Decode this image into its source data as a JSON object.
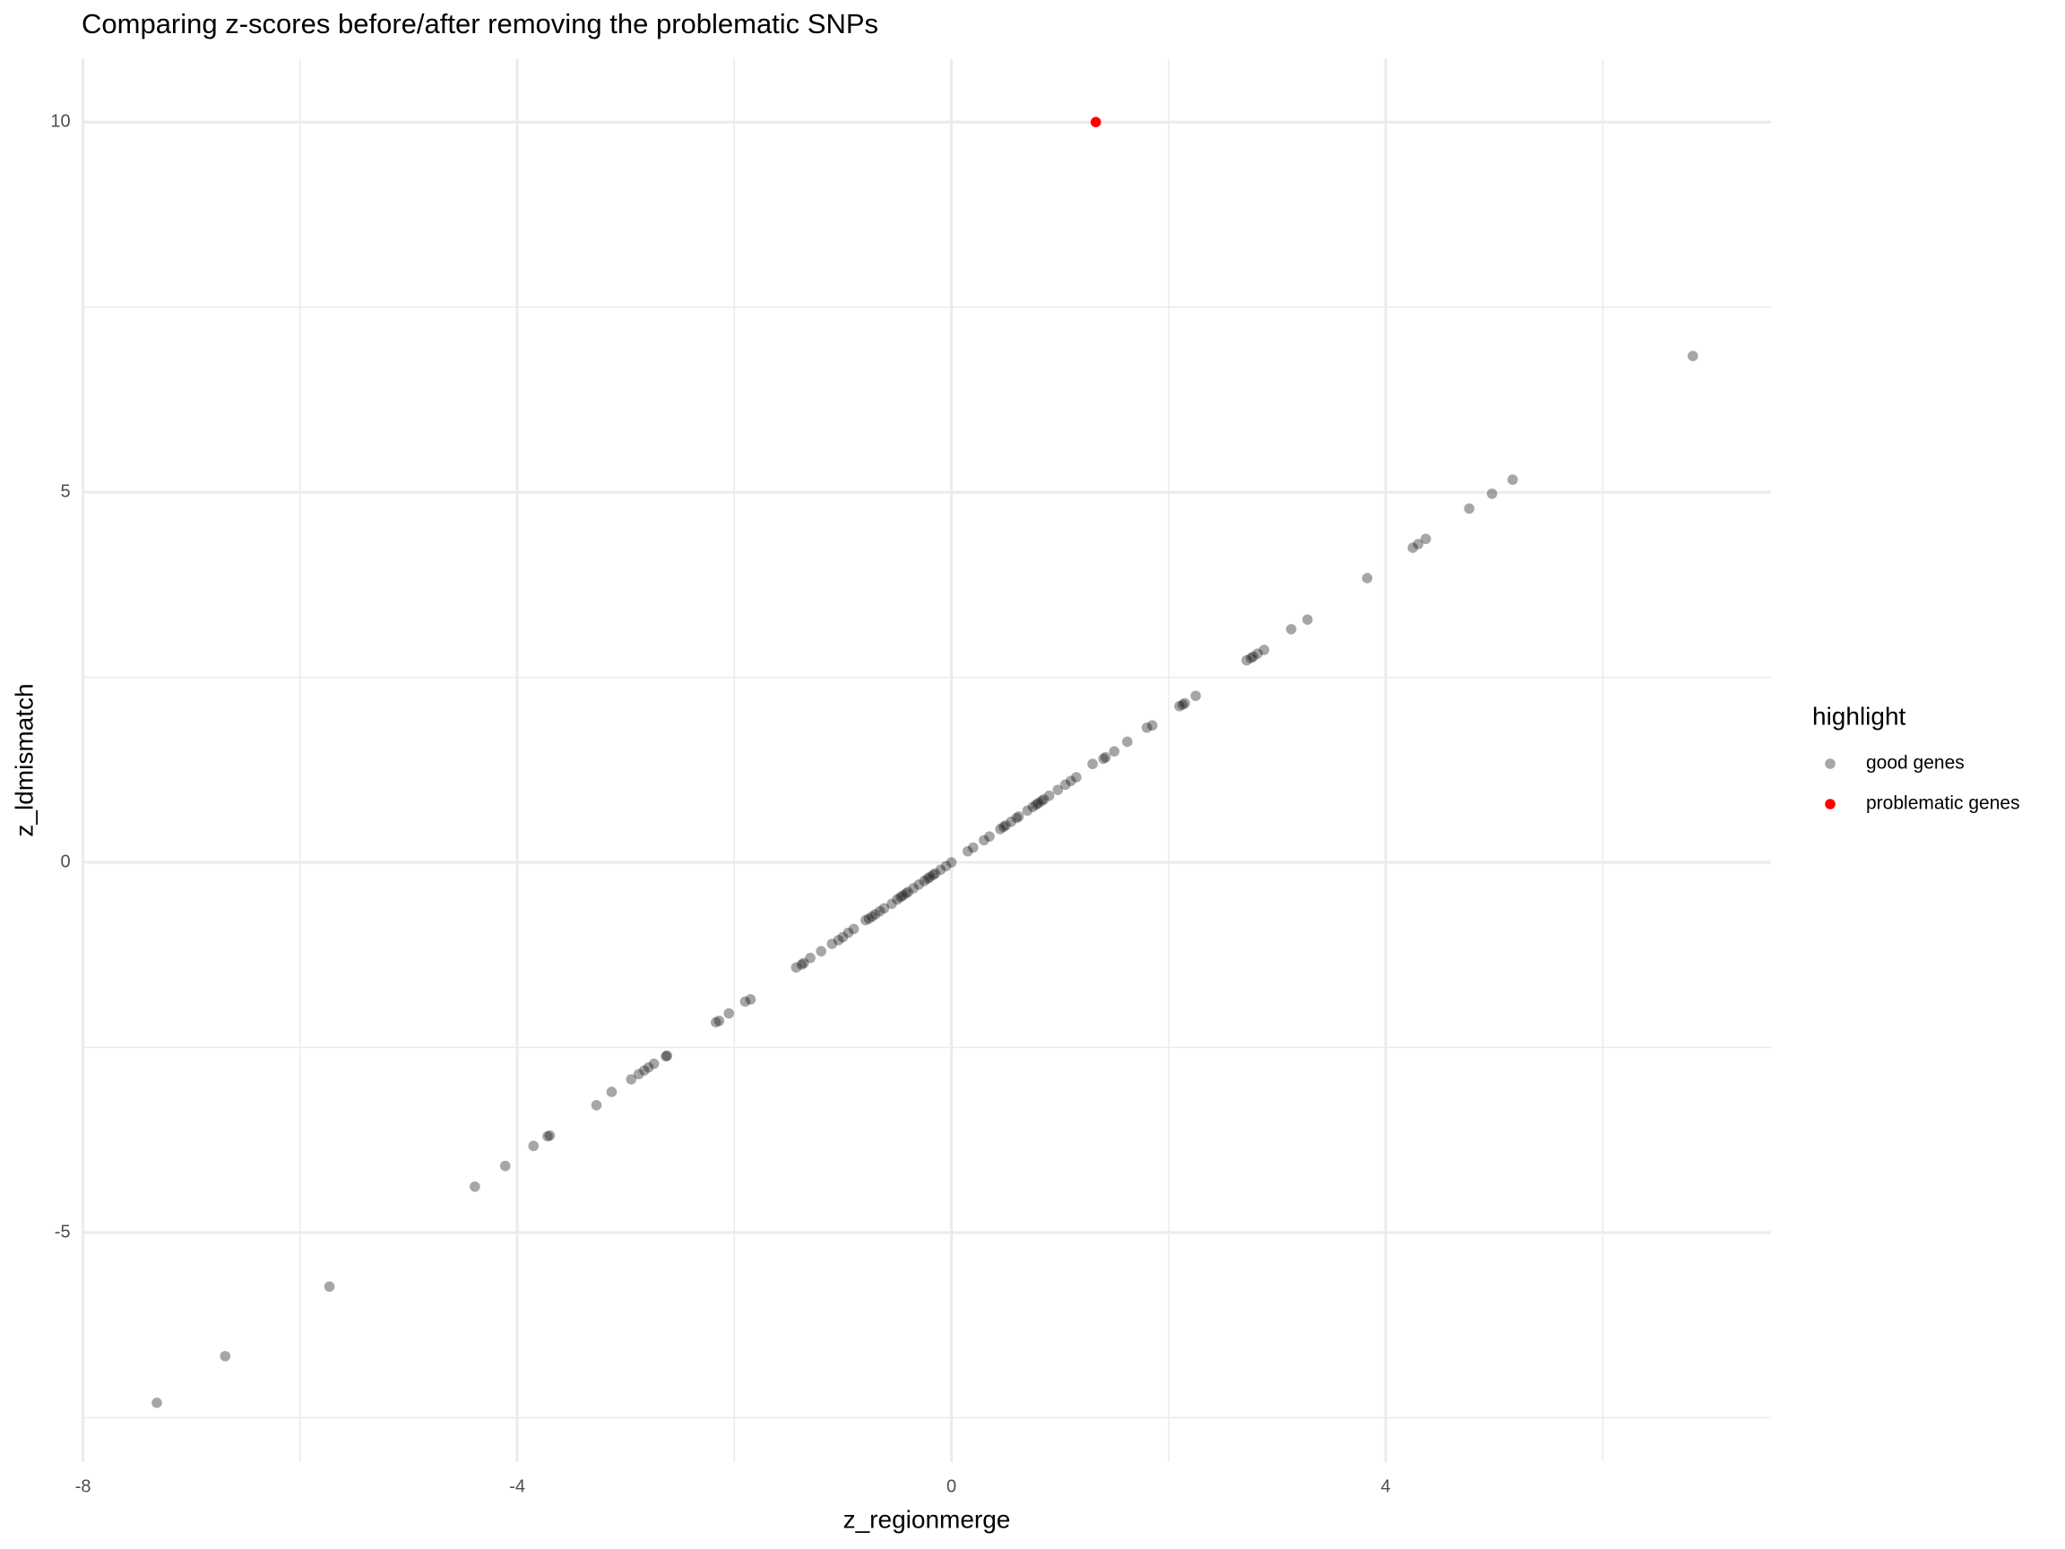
{
  "chart_data": {
    "type": "scatter",
    "title": "Comparing z-scores before/after removing the problematic SNPs",
    "x_label": "z_regionmerge",
    "y_label": "z_ldmismatch",
    "legend_title": "highlight",
    "legend_position": "right",
    "grid": true,
    "xlim": [
      -8,
      7.55
    ],
    "ylim": [
      -8.1,
      10.85
    ],
    "xticks": [
      -8,
      -4,
      0,
      4
    ],
    "yticks": [
      -5,
      0,
      5,
      10
    ],
    "series": [
      {
        "name": "good genes",
        "color": "#000000",
        "opacity": 0.35,
        "x": [
          -7.32,
          -6.69,
          -5.73,
          -4.39,
          -4.11,
          -3.85,
          -3.72,
          -3.7,
          -3.27,
          -3.13,
          -2.95,
          -2.88,
          -2.83,
          -2.79,
          -2.74,
          -2.63,
          -2.62,
          -2.17,
          -2.14,
          -2.05,
          -1.9,
          -1.85,
          -1.43,
          -1.38,
          -1.36,
          -1.3,
          -1.2,
          -1.1,
          -1.04,
          -1.0,
          -0.95,
          -0.9,
          -0.79,
          -0.76,
          -0.73,
          -0.7,
          -0.66,
          -0.62,
          -0.55,
          -0.5,
          -0.47,
          -0.45,
          -0.42,
          -0.4,
          -0.35,
          -0.3,
          -0.25,
          -0.22,
          -0.2,
          -0.17,
          -0.15,
          -0.1,
          -0.05,
          0.0,
          0.15,
          0.2,
          0.3,
          0.35,
          0.45,
          0.48,
          0.5,
          0.55,
          0.6,
          0.62,
          0.7,
          0.75,
          0.78,
          0.8,
          0.83,
          0.85,
          0.9,
          0.98,
          1.05,
          1.1,
          1.15,
          1.3,
          1.4,
          1.42,
          1.5,
          1.62,
          1.8,
          1.85,
          2.1,
          2.13,
          2.15,
          2.25,
          2.72,
          2.76,
          2.78,
          2.82,
          2.88,
          3.13,
          3.28,
          3.83,
          4.25,
          4.3,
          4.37,
          4.77,
          4.98,
          5.17,
          6.83
        ],
        "values": [
          -7.3,
          -6.67,
          -5.73,
          -4.38,
          -4.1,
          -3.83,
          -3.7,
          -3.69,
          -3.28,
          -3.1,
          -2.93,
          -2.86,
          -2.81,
          -2.77,
          -2.72,
          -2.62,
          -2.61,
          -2.16,
          -2.14,
          -2.04,
          -1.88,
          -1.85,
          -1.42,
          -1.38,
          -1.36,
          -1.29,
          -1.2,
          -1.1,
          -1.05,
          -1.01,
          -0.95,
          -0.9,
          -0.78,
          -0.76,
          -0.73,
          -0.7,
          -0.66,
          -0.62,
          -0.56,
          -0.5,
          -0.47,
          -0.45,
          -0.42,
          -0.4,
          -0.35,
          -0.3,
          -0.25,
          -0.22,
          -0.2,
          -0.17,
          -0.15,
          -0.1,
          -0.05,
          0.0,
          0.15,
          0.2,
          0.3,
          0.35,
          0.45,
          0.48,
          0.5,
          0.55,
          0.6,
          0.62,
          0.7,
          0.75,
          0.78,
          0.8,
          0.83,
          0.85,
          0.9,
          0.98,
          1.05,
          1.1,
          1.15,
          1.33,
          1.4,
          1.42,
          1.5,
          1.63,
          1.82,
          1.85,
          2.11,
          2.13,
          2.15,
          2.25,
          2.73,
          2.76,
          2.78,
          2.82,
          2.87,
          3.15,
          3.28,
          3.84,
          4.25,
          4.3,
          4.37,
          4.78,
          4.98,
          5.17,
          6.84
        ]
      },
      {
        "name": "problematic genes",
        "color": "#ff0000",
        "opacity": 1,
        "x": [
          1.33
        ],
        "values": [
          10.0
        ]
      }
    ]
  }
}
